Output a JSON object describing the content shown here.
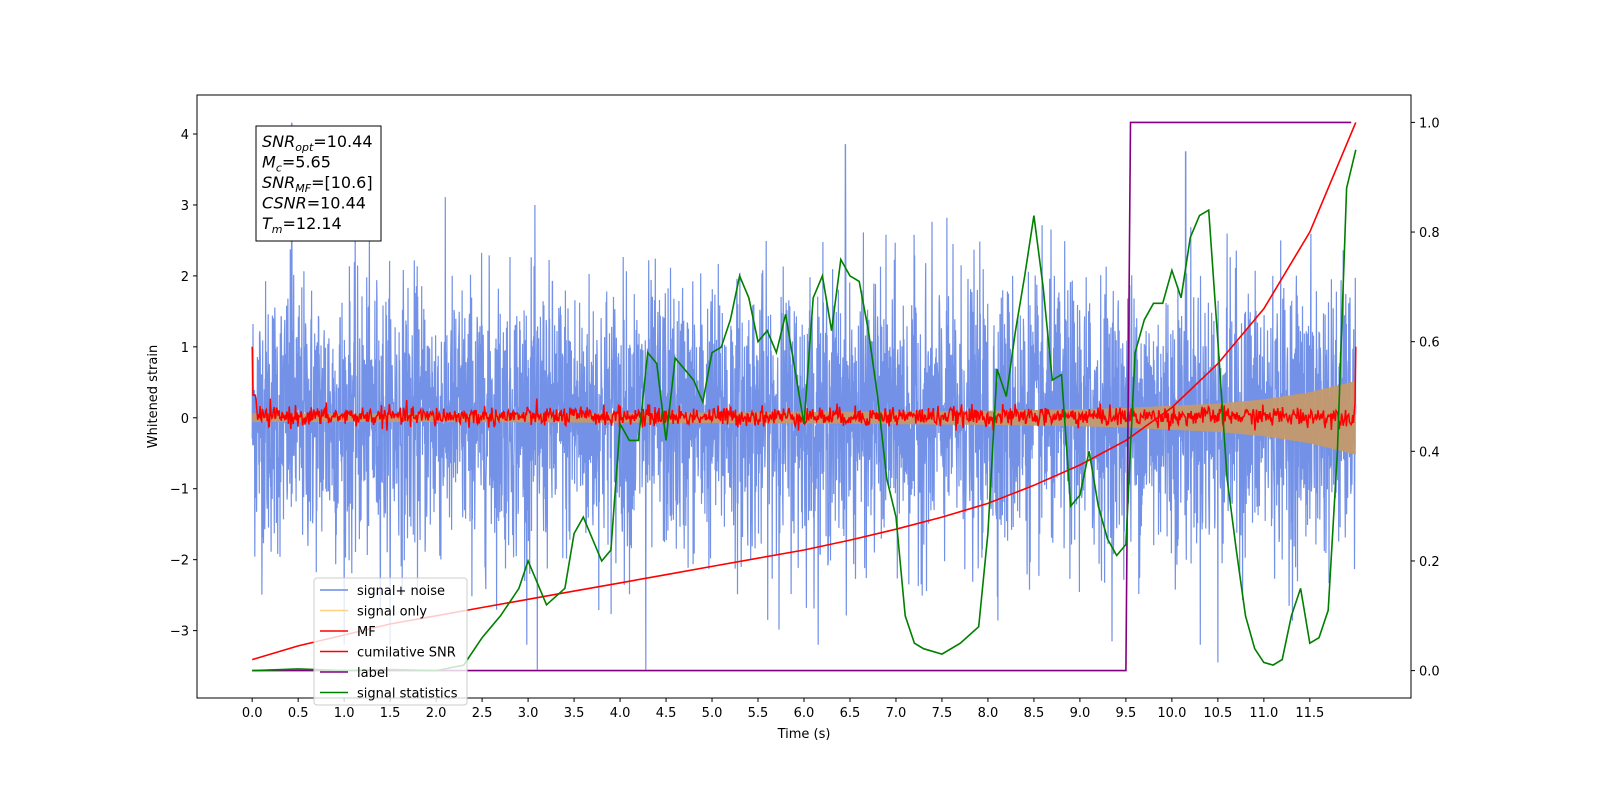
{
  "chart_data": {
    "type": "line",
    "xlabel": "Time (s)",
    "ylabel_left": "Whitened strain",
    "ylabel_right": "",
    "xlim": [
      -0.6,
      12.6
    ],
    "ylim_left": [
      -3.95,
      4.55
    ],
    "ylim_right": [
      -0.05,
      1.05
    ],
    "x_ticks": [
      0.0,
      0.5,
      1.0,
      1.5,
      2.0,
      2.5,
      3.0,
      3.5,
      4.0,
      4.5,
      5.0,
      5.5,
      6.0,
      6.5,
      7.0,
      7.5,
      8.0,
      8.5,
      9.0,
      9.5,
      10.0,
      10.5,
      11.0,
      11.5
    ],
    "x_tick_labels": [
      "0.0",
      "0.5",
      "1.0",
      "1.5",
      "2.0",
      "2.5",
      "3.0",
      "3.5",
      "4.0",
      "4.5",
      "5.0",
      "5.5",
      "6.0",
      "6.5",
      "7.0",
      "7.5",
      "8.0",
      "8.5",
      "9.0",
      "9.5",
      "10.0",
      "10.5",
      "11.0",
      "11.5"
    ],
    "y_ticks_left": [
      -3,
      -2,
      -1,
      0,
      1,
      2,
      3,
      4
    ],
    "y_tick_labels_left": [
      "−3",
      "−2",
      "−1",
      "0",
      "1",
      "2",
      "3",
      "4"
    ],
    "y_ticks_right": [
      0.0,
      0.2,
      0.4,
      0.6,
      0.8,
      1.0
    ],
    "y_tick_labels_right": [
      "0.0",
      "0.2",
      "0.4",
      "0.6",
      "0.8",
      "1.0"
    ],
    "legend_position": "lower-left",
    "legend": [
      {
        "label": "signal+ noise",
        "color": "#6a8be6"
      },
      {
        "label": "signal only",
        "color": "#ffd27f"
      },
      {
        "label": "MF",
        "color": "#ff0000"
      },
      {
        "label": "cumilative SNR",
        "color": "#ff0000"
      },
      {
        "label": "label",
        "color": "#800080"
      },
      {
        "label": "signal statistics",
        "color": "#007f00"
      }
    ],
    "annotation": {
      "snr_opt": {
        "sym": "SNR",
        "sub": "opt",
        "value": "=10.44"
      },
      "mc": {
        "sym": "M",
        "sub": "c",
        "value": "=5.65"
      },
      "snr_mf": {
        "sym": "SNR",
        "sub": "MF",
        "value": "=[10.6]"
      },
      "csnr": {
        "sym": "CSNR",
        "sub": "",
        "value": "=10.44"
      },
      "tm": {
        "sym": "T",
        "sub": "m",
        "value": "=12.14"
      }
    },
    "series": [
      {
        "name": "signal+ noise",
        "axis": "left",
        "color": "#6a8be6",
        "x_range": [
          0.0,
          12.0
        ],
        "noise_band": [
          -2.2,
          2.2
        ],
        "peaks": [
          [
            0.43,
            4.15
          ],
          [
            6.45,
            3.85
          ],
          [
            10.15,
            3.75
          ],
          [
            3.1,
            -3.55
          ],
          [
            4.28,
            -3.55
          ],
          [
            10.5,
            -3.45
          ]
        ]
      },
      {
        "name": "signal only",
        "axis": "left",
        "color": "#c49a6c",
        "x_range": [
          0.0,
          12.0
        ],
        "envelope_x": [
          0.0,
          2.0,
          4.0,
          6.0,
          7.0,
          8.0,
          9.0,
          9.5,
          10.0,
          10.5,
          11.0,
          11.5,
          12.0
        ],
        "envelope": [
          0.06,
          0.06,
          0.07,
          0.08,
          0.09,
          0.1,
          0.12,
          0.14,
          0.17,
          0.2,
          0.26,
          0.36,
          0.52
        ]
      },
      {
        "name": "MF",
        "axis": "left",
        "color": "#ff0000",
        "x_range": [
          0.0,
          12.0
        ],
        "start_spike": 1.0,
        "end_spike": 1.0,
        "band": 0.12
      },
      {
        "name": "cumilative SNR",
        "axis": "right",
        "color": "#ff0000",
        "x": [
          0.0,
          0.5,
          1.0,
          1.5,
          2.0,
          2.5,
          3.0,
          3.5,
          4.0,
          4.5,
          5.0,
          5.5,
          6.0,
          6.5,
          7.0,
          7.5,
          8.0,
          8.5,
          9.0,
          9.5,
          10.0,
          10.5,
          11.0,
          11.5,
          12.0
        ],
        "y": [
          0.02,
          0.045,
          0.065,
          0.085,
          0.1,
          0.115,
          0.13,
          0.145,
          0.16,
          0.175,
          0.19,
          0.205,
          0.22,
          0.238,
          0.258,
          0.28,
          0.305,
          0.338,
          0.375,
          0.42,
          0.48,
          0.56,
          0.66,
          0.8,
          1.0
        ]
      },
      {
        "name": "label",
        "axis": "right",
        "color": "#800080",
        "x": [
          0.0,
          9.5,
          9.55,
          11.95
        ],
        "y": [
          0.0,
          0.0,
          1.0,
          1.0
        ]
      },
      {
        "name": "signal statistics",
        "axis": "right",
        "color": "#007f00",
        "x": [
          0.0,
          0.5,
          1.0,
          1.5,
          2.0,
          2.3,
          2.5,
          2.7,
          2.9,
          3.0,
          3.2,
          3.4,
          3.5,
          3.6,
          3.8,
          3.9,
          4.0,
          4.1,
          4.2,
          4.3,
          4.4,
          4.5,
          4.6,
          4.8,
          4.9,
          5.0,
          5.1,
          5.2,
          5.3,
          5.4,
          5.5,
          5.6,
          5.7,
          5.8,
          5.9,
          6.0,
          6.1,
          6.2,
          6.3,
          6.4,
          6.5,
          6.6,
          6.7,
          6.8,
          6.9,
          7.0,
          7.1,
          7.2,
          7.3,
          7.5,
          7.7,
          7.9,
          8.0,
          8.1,
          8.2,
          8.3,
          8.4,
          8.5,
          8.6,
          8.7,
          8.8,
          8.9,
          9.0,
          9.1,
          9.2,
          9.3,
          9.4,
          9.5,
          9.6,
          9.7,
          9.8,
          9.9,
          10.0,
          10.1,
          10.2,
          10.3,
          10.4,
          10.5,
          10.6,
          10.7,
          10.8,
          10.9,
          11.0,
          11.1,
          11.2,
          11.3,
          11.4,
          11.5,
          11.6,
          11.7,
          11.8,
          11.9,
          12.0
        ],
        "y": [
          0.0,
          0.003,
          0.0,
          0.002,
          0.0,
          0.01,
          0.06,
          0.1,
          0.15,
          0.2,
          0.12,
          0.15,
          0.25,
          0.28,
          0.2,
          0.22,
          0.45,
          0.42,
          0.42,
          0.58,
          0.56,
          0.42,
          0.57,
          0.53,
          0.49,
          0.58,
          0.59,
          0.64,
          0.72,
          0.68,
          0.6,
          0.62,
          0.58,
          0.65,
          0.55,
          0.45,
          0.68,
          0.72,
          0.62,
          0.75,
          0.72,
          0.71,
          0.62,
          0.5,
          0.35,
          0.28,
          0.1,
          0.05,
          0.04,
          0.03,
          0.05,
          0.08,
          0.25,
          0.55,
          0.5,
          0.62,
          0.72,
          0.83,
          0.7,
          0.53,
          0.54,
          0.3,
          0.32,
          0.4,
          0.3,
          0.24,
          0.21,
          0.23,
          0.58,
          0.64,
          0.67,
          0.67,
          0.73,
          0.68,
          0.79,
          0.83,
          0.84,
          0.6,
          0.35,
          0.22,
          0.1,
          0.04,
          0.015,
          0.01,
          0.02,
          0.1,
          0.15,
          0.05,
          0.06,
          0.11,
          0.4,
          0.88,
          0.95
        ]
      }
    ]
  }
}
